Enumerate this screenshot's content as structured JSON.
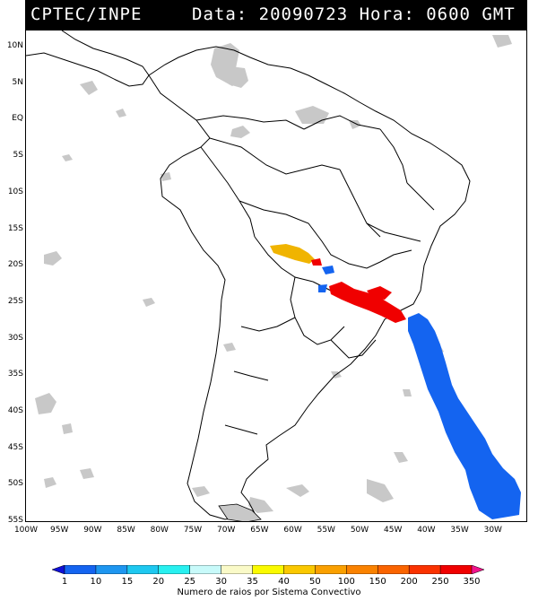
{
  "header": {
    "left": "CPTEC/INPE",
    "right": "Data: 20090723 Hora: 0600 GMT"
  },
  "map": {
    "lat_labels": [
      "10N",
      "5N",
      "EQ",
      "5S",
      "10S",
      "15S",
      "20S",
      "25S",
      "30S",
      "35S",
      "40S",
      "45S",
      "50S",
      "55S"
    ],
    "lon_labels": [
      "100W",
      "95W",
      "90W",
      "85W",
      "80W",
      "75W",
      "70W",
      "65W",
      "60W",
      "55W",
      "50W",
      "45W",
      "40W",
      "35W",
      "30W"
    ],
    "lat_range": [
      11.5,
      -56.5
    ],
    "lon_range": [
      -101,
      -26
    ]
  },
  "colorbar": {
    "labels": [
      "1",
      "10",
      "15",
      "20",
      "25",
      "30",
      "35",
      "40",
      "50",
      "100",
      "150",
      "200",
      "250",
      "350"
    ],
    "colors": [
      "#1010d8",
      "#1464f0",
      "#1e96f0",
      "#1ec8f0",
      "#28f0f0",
      "#c8fafa",
      "#fafac8",
      "#fafa00",
      "#fac800",
      "#faa000",
      "#fa8200",
      "#fa6400",
      "#fa3200",
      "#f00000",
      "#f0148c"
    ],
    "title": "Numero de raios por Sistema Convectivo"
  },
  "systems": [
    {
      "name": "yellow-system",
      "color": "#f0b400"
    },
    {
      "name": "red-system",
      "color": "#f00000"
    },
    {
      "name": "blue-system",
      "color": "#1464f0"
    }
  ]
}
